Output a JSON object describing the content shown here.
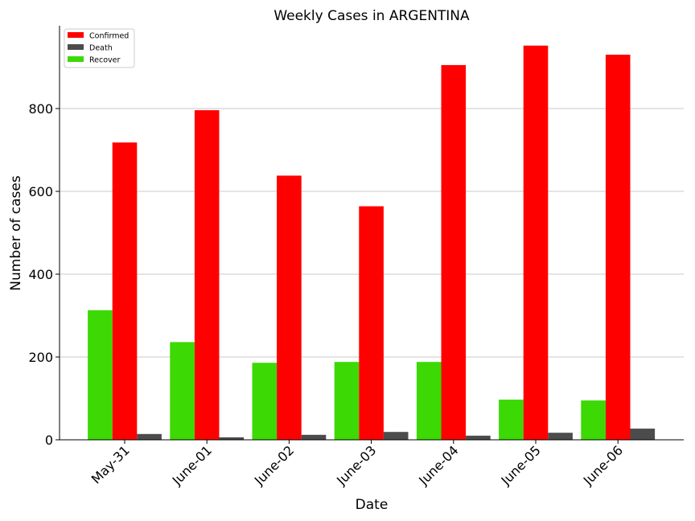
{
  "chart_data": {
    "type": "bar",
    "title": "Weekly Cases in ARGENTINA",
    "xlabel": "Date",
    "ylabel": "Number of cases",
    "categories": [
      "May-31",
      "June-01",
      "June-02",
      "June-03",
      "June-04",
      "June-05",
      "June-06"
    ],
    "ylim": [
      0,
      1000
    ],
    "yticks": [
      0,
      200,
      400,
      600,
      800
    ],
    "grid": "horizontal",
    "legend_position": "top-left",
    "series": [
      {
        "name": "Recover",
        "color": "#3cd905",
        "values": [
          313,
          236,
          186,
          188,
          188,
          97,
          95
        ]
      },
      {
        "name": "Confirmed",
        "color": "#ff0000",
        "values": [
          718,
          796,
          638,
          564,
          905,
          952,
          930
        ]
      },
      {
        "name": "Death",
        "color": "#4c4c4c",
        "values": [
          14,
          6,
          12,
          19,
          10,
          17,
          27
        ]
      }
    ],
    "legend": [
      {
        "label": "Confirmed",
        "color": "#ff0000"
      },
      {
        "label": "Death",
        "color": "#4c4c4c"
      },
      {
        "label": "Recover",
        "color": "#3cd905"
      }
    ]
  }
}
